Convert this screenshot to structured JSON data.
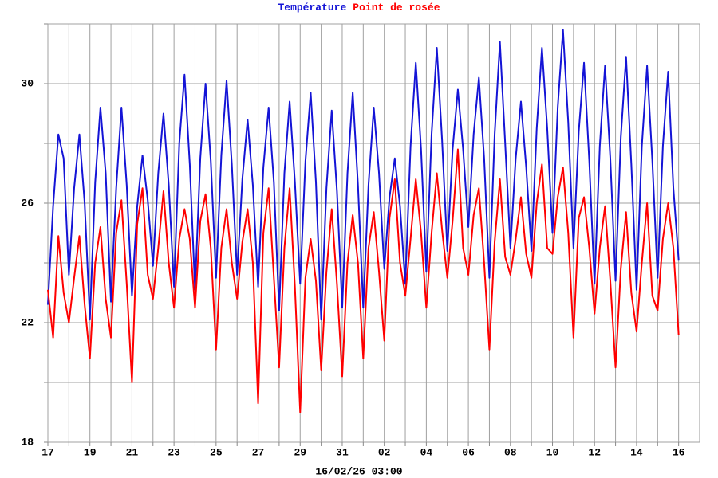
{
  "chart_data": {
    "type": "line",
    "x_label": "16/02/26 03:00",
    "x": [
      0,
      0.25,
      0.5,
      0.75,
      1,
      1.25,
      1.5,
      1.75,
      2,
      2.25,
      2.5,
      2.75,
      3,
      3.25,
      3.5,
      3.75,
      4,
      4.25,
      4.5,
      4.75,
      5,
      5.25,
      5.5,
      5.75,
      6,
      6.25,
      6.5,
      6.75,
      7,
      7.25,
      7.5,
      7.75,
      8,
      8.25,
      8.5,
      8.75,
      9,
      9.25,
      9.5,
      9.75,
      10,
      10.25,
      10.5,
      10.75,
      11,
      11.25,
      11.5,
      11.75,
      12,
      12.25,
      12.5,
      12.75,
      13,
      13.25,
      13.5,
      13.75,
      14,
      14.25,
      14.5,
      14.75,
      15,
      15.25,
      15.5,
      15.75,
      16,
      16.25,
      16.5,
      16.75,
      17,
      17.25,
      17.5,
      17.75,
      18,
      18.25,
      18.5,
      18.75,
      19,
      19.25,
      19.5,
      19.75,
      20,
      20.25,
      20.5,
      20.75,
      21,
      21.25,
      21.5,
      21.75,
      22,
      22.25,
      22.5,
      22.75,
      23,
      23.25,
      23.5,
      23.75,
      24,
      24.25,
      24.5,
      24.75,
      25,
      25.25,
      25.5,
      25.75,
      26,
      26.25,
      26.5,
      26.75,
      27,
      27.25,
      27.5,
      27.75,
      28,
      28.25,
      28.5,
      28.75,
      29,
      29.25,
      29.5,
      29.75,
      30
    ],
    "series": [
      {
        "name": "Température",
        "color": "#1414d6",
        "values": [
          22.6,
          25.9,
          28.3,
          27.5,
          23.6,
          26.5,
          28.3,
          26.0,
          22.1,
          26.7,
          29.2,
          27.0,
          22.7,
          26.5,
          29.2,
          26.6,
          22.9,
          25.9,
          27.6,
          26.1,
          23.9,
          27.0,
          29.0,
          26.6,
          23.2,
          28.0,
          30.3,
          27.3,
          23.1,
          27.5,
          30.0,
          27.4,
          23.5,
          27.6,
          30.1,
          27.3,
          23.6,
          26.8,
          28.8,
          26.6,
          23.2,
          27.2,
          29.2,
          26.7,
          22.4,
          27.0,
          29.4,
          26.7,
          23.3,
          27.4,
          29.7,
          26.7,
          22.1,
          26.5,
          29.1,
          26.4,
          22.5,
          27.0,
          29.7,
          26.6,
          22.5,
          26.6,
          29.2,
          27.0,
          23.8,
          26.2,
          27.5,
          25.9,
          23.3,
          27.9,
          30.7,
          27.8,
          23.7,
          28.3,
          31.2,
          28.1,
          24.4,
          27.8,
          29.8,
          27.8,
          25.2,
          28.3,
          30.2,
          27.5,
          23.5,
          28.3,
          31.4,
          28.0,
          24.5,
          27.5,
          29.4,
          27.2,
          24.4,
          28.5,
          31.2,
          28.5,
          25.0,
          29.2,
          31.8,
          28.7,
          24.5,
          28.4,
          30.7,
          27.4,
          23.3,
          27.9,
          30.6,
          27.5,
          23.4,
          28.2,
          30.9,
          27.3,
          23.1,
          27.9,
          30.6,
          27.4,
          23.5,
          27.9,
          30.4,
          26.5,
          24.1
        ]
      },
      {
        "name": "Point de rosée",
        "color": "#ff0000",
        "values": [
          23.1,
          21.5,
          24.9,
          23.0,
          22.0,
          23.5,
          24.9,
          22.6,
          20.8,
          24.0,
          25.2,
          22.8,
          21.5,
          25.0,
          26.1,
          23.3,
          20.0,
          25.3,
          26.5,
          23.6,
          22.8,
          24.5,
          26.4,
          24.0,
          22.5,
          24.8,
          25.8,
          24.8,
          22.5,
          25.4,
          26.3,
          24.5,
          21.1,
          24.5,
          25.8,
          24.0,
          22.8,
          24.7,
          25.8,
          24.0,
          19.3,
          25.0,
          26.5,
          23.5,
          20.5,
          24.5,
          26.5,
          23.2,
          19.0,
          23.5,
          24.8,
          23.4,
          20.4,
          23.7,
          25.8,
          23.3,
          20.2,
          24.0,
          25.6,
          24.0,
          20.8,
          24.5,
          25.7,
          23.7,
          21.4,
          25.5,
          26.8,
          24.0,
          22.9,
          24.8,
          26.8,
          25.0,
          22.5,
          25.0,
          27.0,
          25.1,
          23.5,
          25.4,
          27.8,
          24.5,
          23.6,
          25.6,
          26.5,
          24.0,
          21.1,
          24.7,
          26.8,
          24.2,
          23.6,
          24.8,
          26.2,
          24.3,
          23.5,
          26.0,
          27.3,
          24.5,
          24.3,
          26.2,
          27.2,
          25.0,
          21.5,
          25.5,
          26.2,
          24.5,
          22.3,
          24.5,
          25.9,
          23.4,
          20.5,
          23.8,
          25.7,
          23.0,
          21.7,
          24.0,
          26.0,
          22.9,
          22.4,
          24.8,
          26.0,
          24.5,
          21.6
        ]
      }
    ],
    "xlim": [
      0,
      31
    ],
    "xticks": [
      {
        "value": 0,
        "label": "17"
      },
      {
        "value": 1,
        "label": null
      },
      {
        "value": 2,
        "label": "19"
      },
      {
        "value": 3,
        "label": null
      },
      {
        "value": 4,
        "label": "21"
      },
      {
        "value": 5,
        "label": null
      },
      {
        "value": 6,
        "label": "23"
      },
      {
        "value": 7,
        "label": null
      },
      {
        "value": 8,
        "label": "25"
      },
      {
        "value": 9,
        "label": null
      },
      {
        "value": 10,
        "label": "27"
      },
      {
        "value": 11,
        "label": null
      },
      {
        "value": 12,
        "label": "29"
      },
      {
        "value": 13,
        "label": null
      },
      {
        "value": 14,
        "label": "31"
      },
      {
        "value": 15,
        "label": null
      },
      {
        "value": 16,
        "label": "02"
      },
      {
        "value": 17,
        "label": null
      },
      {
        "value": 18,
        "label": "04"
      },
      {
        "value": 19,
        "label": null
      },
      {
        "value": 20,
        "label": "06"
      },
      {
        "value": 21,
        "label": null
      },
      {
        "value": 22,
        "label": "08"
      },
      {
        "value": 23,
        "label": null
      },
      {
        "value": 24,
        "label": "10"
      },
      {
        "value": 25,
        "label": null
      },
      {
        "value": 26,
        "label": "12"
      },
      {
        "value": 27,
        "label": null
      },
      {
        "value": 28,
        "label": "14"
      },
      {
        "value": 29,
        "label": null
      },
      {
        "value": 30,
        "label": "16"
      }
    ],
    "ylim": [
      18,
      32
    ],
    "yticks": [
      18,
      {
        "value": 20,
        "label": null
      },
      22,
      {
        "value": 24,
        "label": null
      },
      26,
      {
        "value": 28,
        "label": null
      },
      30,
      {
        "value": 32,
        "label": null
      }
    ],
    "grid": true
  }
}
